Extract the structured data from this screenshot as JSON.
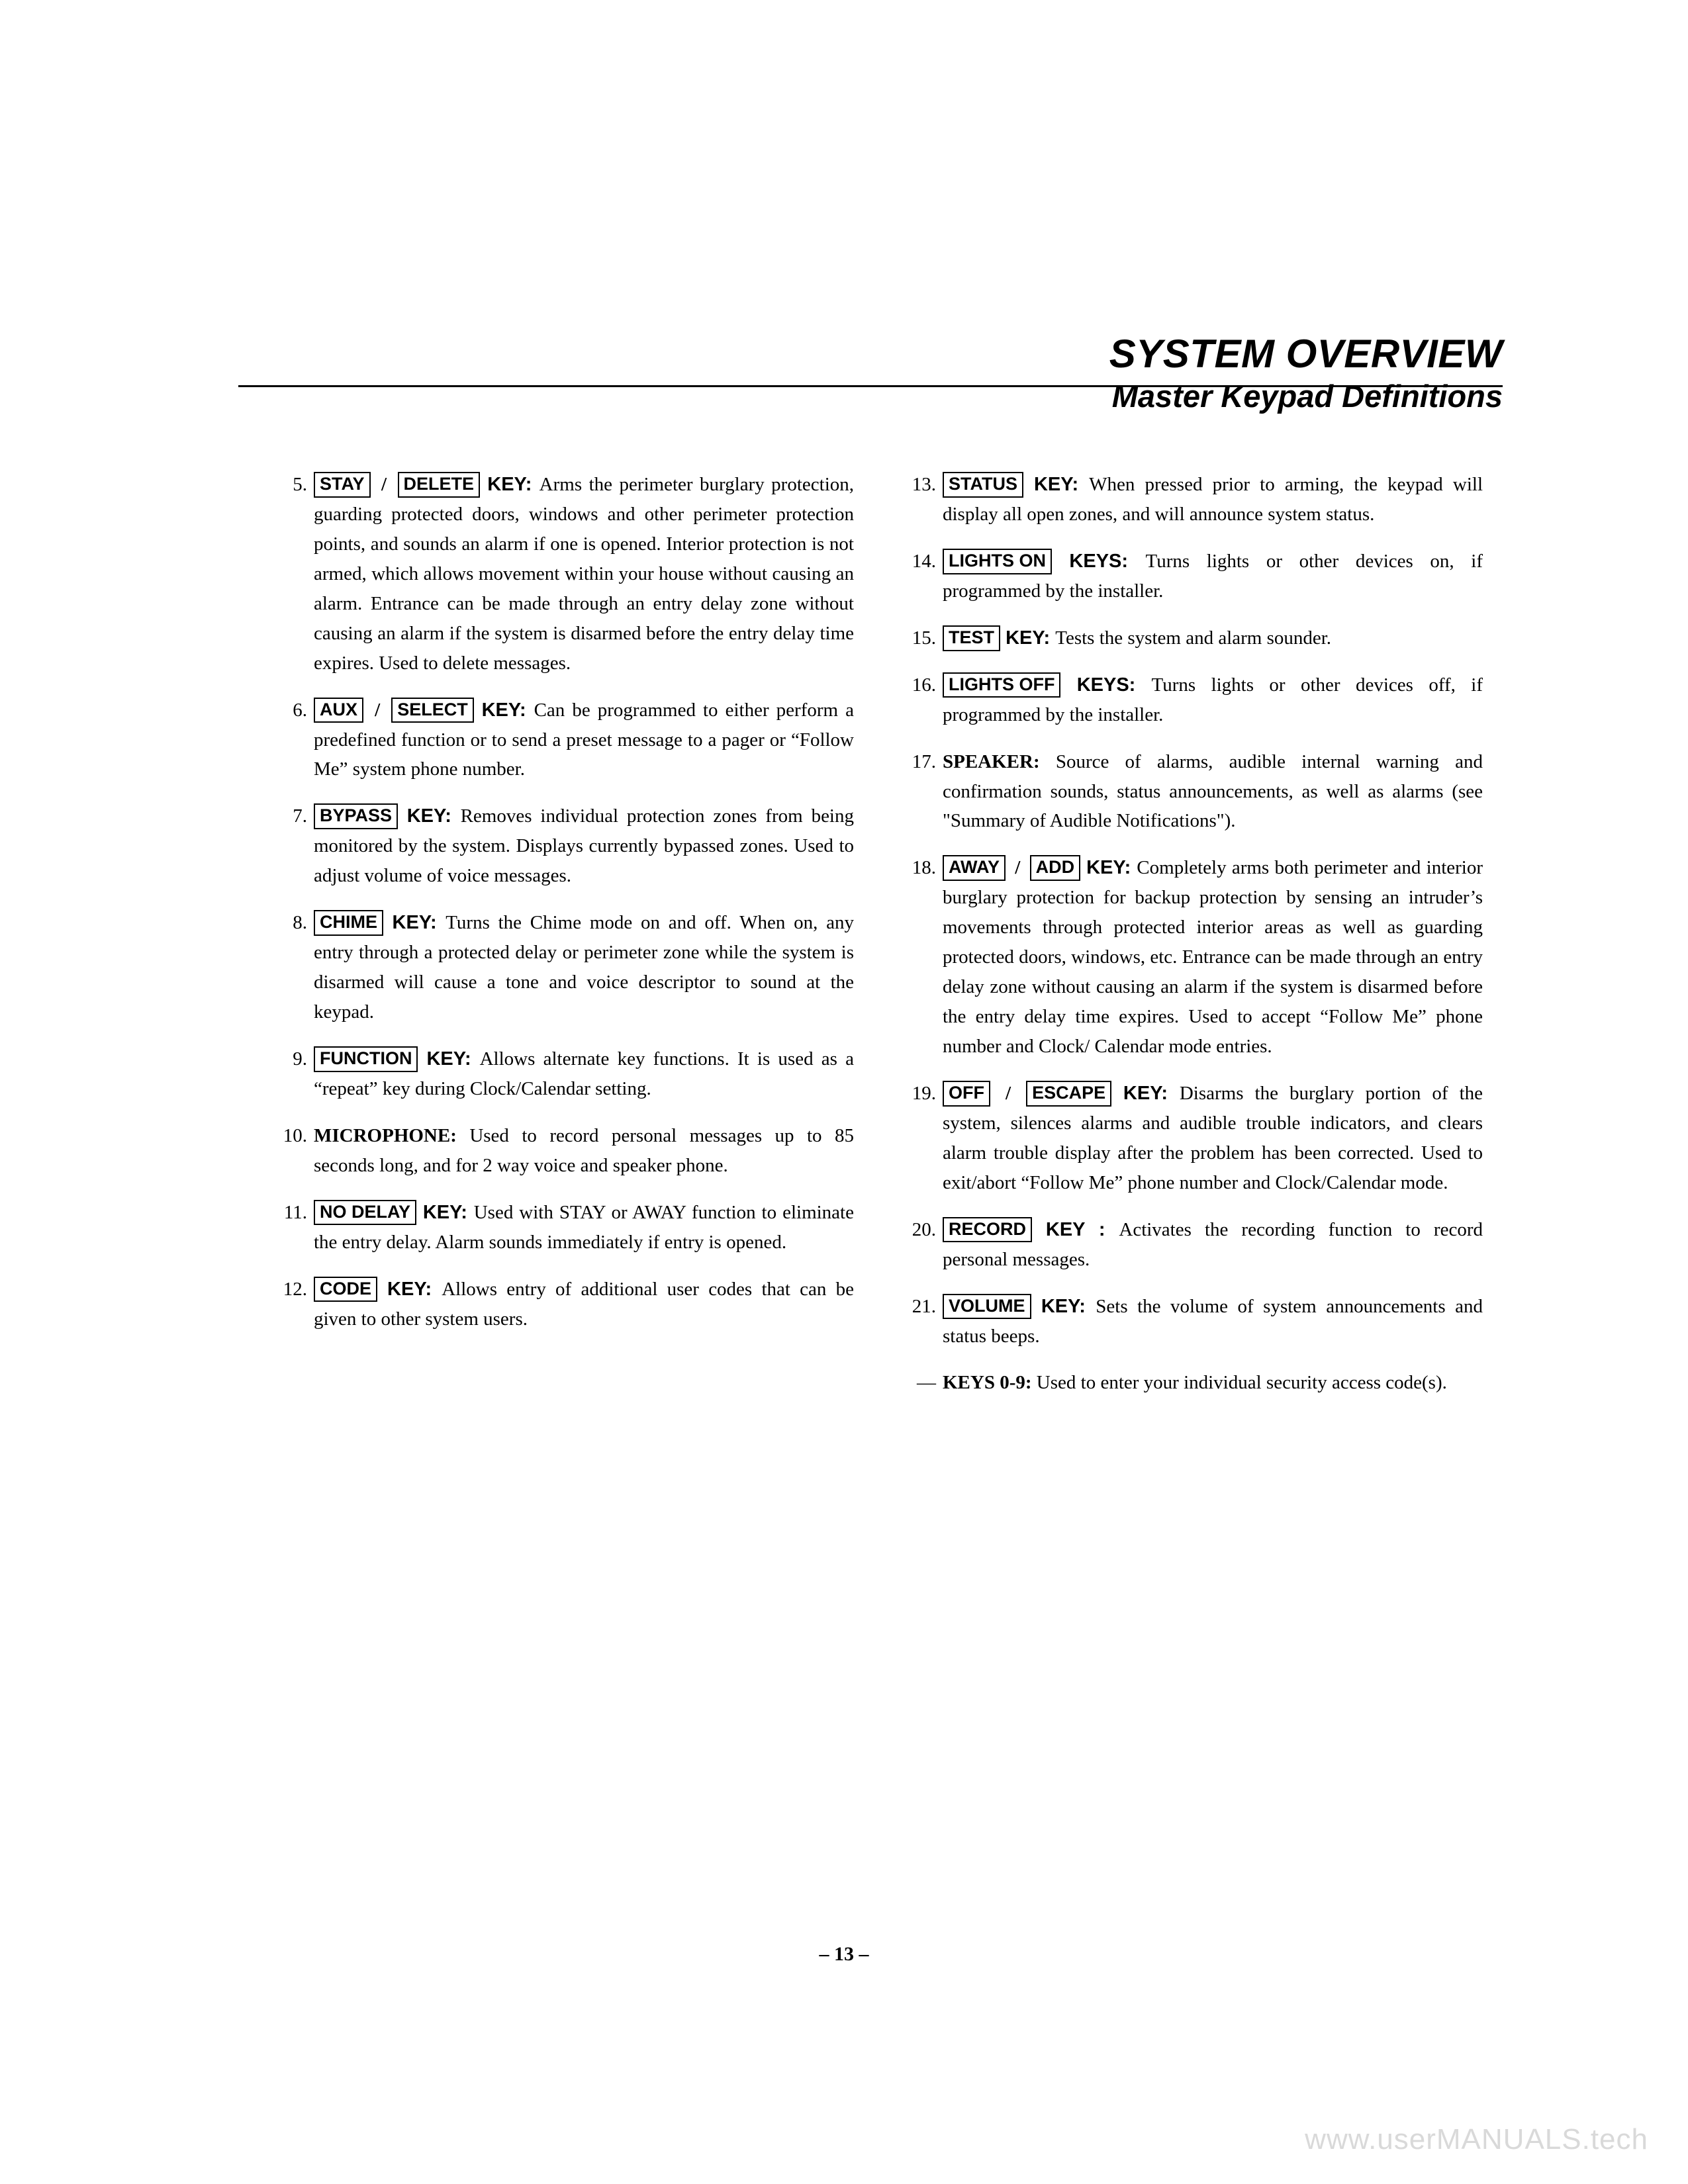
{
  "header": {
    "title": "SYSTEM OVERVIEW",
    "subtitle": "Master Keypad Definitions"
  },
  "left_items": [
    {
      "n": "5.",
      "keys": [
        "STAY",
        "DELETE"
      ],
      "join": " / ",
      "label": " KEY:",
      "text": "Arms the perimeter burglary protection, guarding protected doors, windows and other perimeter protection points, and sounds an alarm if one is opened. Interior protection is not armed, which allows movement within your house without causing an alarm. Entrance can be made through an entry delay zone without causing an alarm if the system is disarmed before the entry delay time expires. Used to delete messages."
    },
    {
      "n": "6.",
      "keys": [
        "AUX",
        "SELECT"
      ],
      "join": " / ",
      "label": "  KEY:",
      "text": "Can be programmed to either perform a predefined function or to send a preset message to a pager  or “Follow Me” system phone number."
    },
    {
      "n": "7.",
      "keys": [
        "BYPASS"
      ],
      "join": "",
      "label": " KEY:",
      "text": "Removes individual protection zones from being monitored by the system. Displays currently bypassed zones. Used to adjust volume of voice messages."
    },
    {
      "n": "8.",
      "keys": [
        "CHIME"
      ],
      "join": "",
      "label": " KEY:",
      "text": "Turns the Chime mode on and off. When on, any entry through a protected delay or perimeter zone while the system is disarmed will cause a tone and voice descriptor to sound at the keypad."
    },
    {
      "n": "9.",
      "keys": [
        "FUNCTION"
      ],
      "join": "",
      "label": " KEY:",
      "text": "Allows alternate key functions. It is used as a “repeat” key during Clock/Calendar setting."
    },
    {
      "n": "10.",
      "bold_lead": "MICROPHONE:",
      "text": "Used to record personal messages up to 85 seconds long, and for 2 way voice and speaker phone."
    },
    {
      "n": "11.",
      "keys": [
        "NO DELAY"
      ],
      "join": "",
      "label": " KEY:",
      "text": "Used with STAY or AWAY function to eliminate the entry delay. Alarm sounds immediately if entry is opened."
    },
    {
      "n": "12.",
      "keys": [
        "CODE"
      ],
      "join": "",
      "label": " KEY:",
      "text": "Allows entry of additional user codes that can be given to other system users."
    }
  ],
  "right_items": [
    {
      "n": "13.",
      "keys": [
        "STATUS"
      ],
      "join": "",
      "label": "  KEY:",
      "text": "When pressed prior to arming, the keypad will display all open zones, and will announce system status."
    },
    {
      "n": "14.",
      "keys": [
        "LIGHTS ON"
      ],
      "join": "",
      "label": " KEYS:",
      "text": "Turns lights or other devices on, if programmed by the installer."
    },
    {
      "n": "15.",
      "keys": [
        "TEST"
      ],
      "join": "",
      "label": " KEY:",
      "text": "Tests the system and alarm sounder."
    },
    {
      "n": "16.",
      "keys": [
        "LIGHTS OFF"
      ],
      "join": "",
      "label": " KEYS:",
      "text": "Turns lights or other devices off, if programmed by the installer."
    },
    {
      "n": "17.",
      "bold_lead": "SPEAKER:",
      "text": "Source of alarms, audible internal warning and confirmation sounds, status announcements, as well as alarms (see \"Summary of Audible Notifications\")."
    },
    {
      "n": "18.",
      "keys": [
        "AWAY",
        "ADD"
      ],
      "join": " / ",
      "label": "  KEY:",
      "text": "Completely arms both perimeter and interior burglary protection for backup protection by sensing an intruder’s movements through protected interior areas as well as guarding protected doors, windows, etc. Entrance can be made through an entry delay zone without causing an alarm if the system is disarmed before the entry delay time expires. Used to accept “Follow Me” phone number and Clock/ Calendar mode entries."
    },
    {
      "n": "19.",
      "keys": [
        "OFF",
        "ESCAPE"
      ],
      "join": " / ",
      "label": "  KEY:",
      "text": "Disarms the burglary portion of the system, silences alarms and audible trouble indicators, and clears alarm trouble display after the problem has been corrected.  Used to exit/abort “Follow Me” phone number and Clock/Calendar mode."
    },
    {
      "n": "20.",
      "keys": [
        "RECORD"
      ],
      "join": "",
      "label": "  KEY :",
      "text": "Activates the recording function to record personal messages."
    },
    {
      "n": "21.",
      "keys": [
        "VOLUME"
      ],
      "join": "",
      "label": " KEY:",
      "text": "Sets the volume of system announcements and status beeps."
    },
    {
      "n": "—",
      "bold_lead": "KEYS 0-9:",
      "text": "Used to enter your individual security access code(s)."
    }
  ],
  "page_number": "– 13 –",
  "watermark": "www.userMANUALS.tech",
  "colors": {
    "text": "#000000",
    "background": "#ffffff",
    "watermark": "#d9d9d9",
    "rule": "#000000"
  },
  "typography": {
    "title_pt": 60,
    "subtitle_pt": 47,
    "body_pt": 29,
    "key_box_pt": 27,
    "title_family": "Arial",
    "body_family": "Georgia"
  }
}
